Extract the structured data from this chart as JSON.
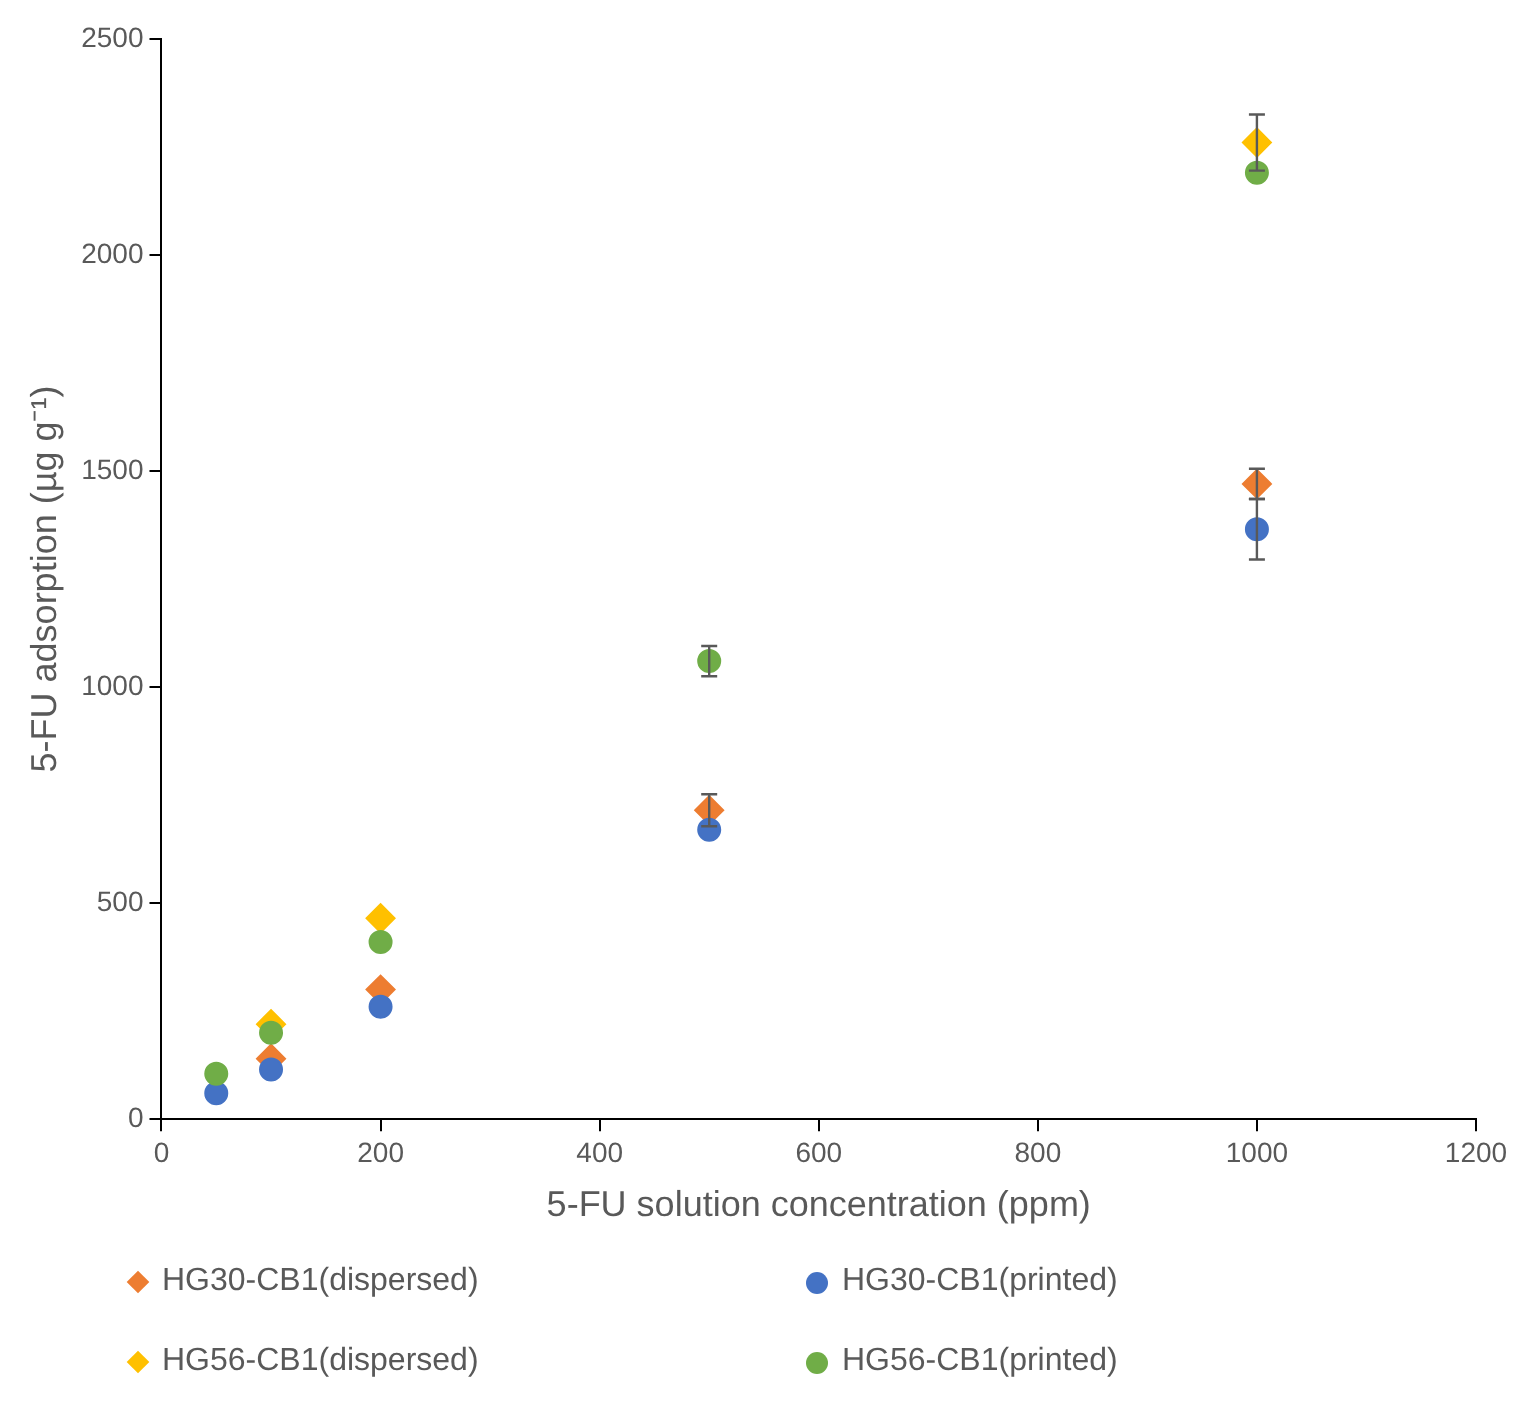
{
  "chart_data": {
    "type": "scatter",
    "xlabel": "5-FU solution concentration (ppm)",
    "ylabel": "5-FU adsorption (µg g⁻¹)",
    "xlim": [
      0,
      1200
    ],
    "xticks": [
      0,
      200,
      400,
      600,
      800,
      1000,
      1200
    ],
    "ylim": [
      0,
      2500
    ],
    "yticks": [
      0,
      500,
      1000,
      1500,
      2000,
      2500
    ],
    "grid": false,
    "legend": "bottom",
    "series": [
      {
        "name": "HG30-CB1(dispersed)",
        "color": "#ed7d31",
        "marker": "diamond",
        "x": [
          100,
          200,
          500,
          1000
        ],
        "values": [
          140,
          300,
          715,
          1470
        ],
        "errors": [
          null,
          null,
          37,
          35
        ]
      },
      {
        "name": "HG30-CB1(printed)",
        "color": "#4472c4",
        "marker": "circle",
        "x": [
          50,
          100,
          200,
          500,
          1000
        ],
        "values": [
          60,
          115,
          260,
          670,
          1365
        ],
        "errors": [
          null,
          null,
          null,
          null,
          70
        ]
      },
      {
        "name": "HG56-CB1(dispersed)",
        "color": "#ffc000",
        "marker": "diamond",
        "x": [
          100,
          200,
          1000
        ],
        "values": [
          220,
          465,
          2260
        ],
        "errors": [
          null,
          null,
          65
        ]
      },
      {
        "name": "HG56-CB1(printed)",
        "color": "#70ad47",
        "marker": "circle",
        "x": [
          50,
          100,
          200,
          500,
          1000
        ],
        "values": [
          105,
          200,
          410,
          1060,
          2190
        ],
        "errors": [
          null,
          null,
          null,
          35,
          null
        ]
      }
    ]
  }
}
